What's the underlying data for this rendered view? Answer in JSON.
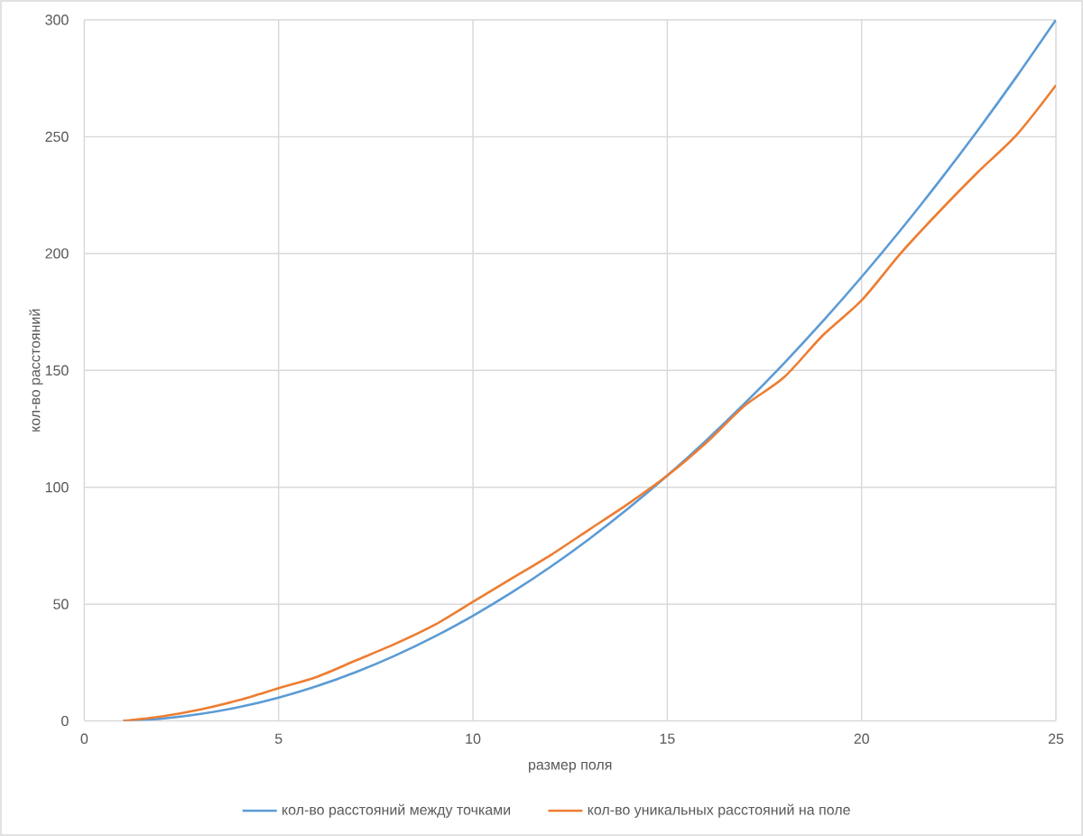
{
  "chart_data": {
    "type": "line",
    "xlabel": "размер поля",
    "ylabel": "кол-во расстояний",
    "x": [
      1,
      2,
      3,
      4,
      5,
      6,
      7,
      8,
      9,
      10,
      11,
      12,
      13,
      14,
      15,
      16,
      17,
      18,
      19,
      20,
      21,
      22,
      23,
      24,
      25
    ],
    "series": [
      {
        "name": "кол-во расстояний между точками",
        "color": "#5b9bd5",
        "values": [
          0,
          1,
          3,
          6,
          10,
          15,
          21,
          28,
          36,
          45,
          55,
          66,
          78,
          91,
          105,
          120,
          136,
          153,
          171,
          190,
          210,
          231,
          253,
          276,
          300
        ]
      },
      {
        "name": "кол-во уникальных расстояний на поле",
        "color": "#ed7d31",
        "values": [
          0,
          2,
          5,
          9,
          14,
          19,
          26,
          33,
          41,
          51,
          61,
          71,
          82,
          93,
          105,
          119,
          135,
          147,
          165,
          180,
          200,
          218,
          235,
          251,
          272
        ]
      }
    ],
    "xlim": [
      0,
      25
    ],
    "ylim": [
      0,
      300
    ],
    "xticks": [
      0,
      5,
      10,
      15,
      20,
      25
    ],
    "yticks": [
      0,
      50,
      100,
      150,
      200,
      250,
      300
    ],
    "grid": true,
    "legend": "bottom"
  }
}
